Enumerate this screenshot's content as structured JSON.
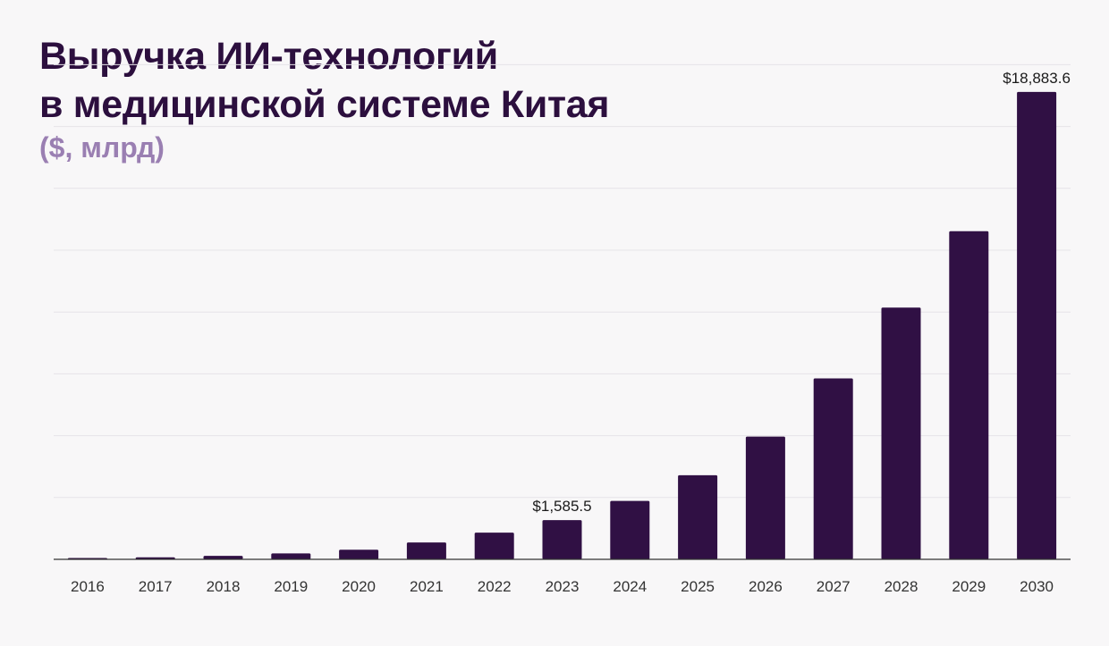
{
  "title_line1": "Выручка ИИ-технологий",
  "title_line2": "в медицинской системе Китая",
  "subtitle": "($, млрд)",
  "colors": {
    "bar": "#301044",
    "grid": "#e6e4e8",
    "axis": "#333333",
    "title": "#2c0f3e",
    "subtitle": "#9a7fb2",
    "background": "#f8f7f8"
  },
  "chart_data": {
    "type": "bar",
    "categories": [
      "2016",
      "2017",
      "2018",
      "2019",
      "2020",
      "2021",
      "2022",
      "2023",
      "2024",
      "2025",
      "2026",
      "2027",
      "2028",
      "2029",
      "2030"
    ],
    "values": [
      40,
      80,
      140,
      240,
      390,
      680,
      1080,
      1585.5,
      2360,
      3400,
      4960,
      7310,
      10170,
      13260,
      18883.6
    ],
    "data_labels": [
      {
        "category": "2023",
        "text": "$1,585.5"
      },
      {
        "category": "2030",
        "text": "$18,883.6"
      }
    ],
    "ylim": [
      0,
      20000
    ],
    "grid": true,
    "legend": "none",
    "xlabel": "",
    "ylabel": ""
  }
}
